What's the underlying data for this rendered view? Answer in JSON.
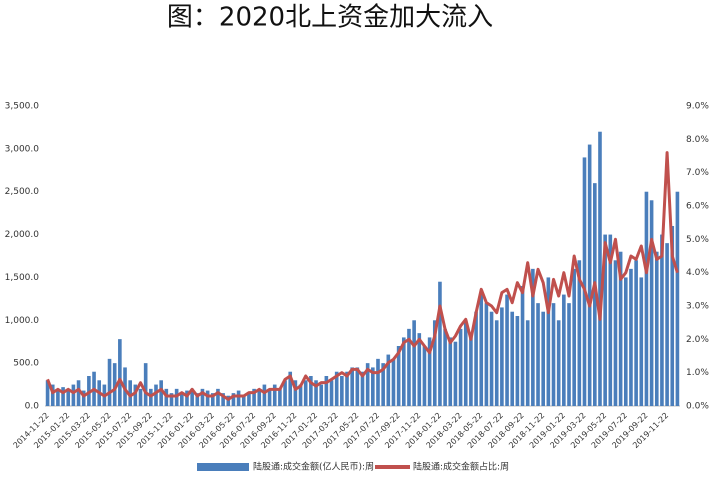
{
  "chart_data": {
    "type": "bar_line",
    "title": "图：2020北上资金加大流入",
    "categories": [
      "2014-11-22",
      null,
      null,
      null,
      "2015-01-22",
      null,
      null,
      null,
      "2015-03-22",
      null,
      null,
      null,
      "2015-05-22",
      null,
      null,
      null,
      "2015-07-22",
      null,
      null,
      null,
      "2015-09-22",
      null,
      null,
      null,
      "2015-11-22",
      null,
      null,
      null,
      "2016-01-22",
      null,
      null,
      null,
      "2016-03-22",
      null,
      null,
      null,
      "2016-05-22",
      null,
      null,
      null,
      "2016-07-22",
      null,
      null,
      null,
      "2016-09-22",
      null,
      null,
      null,
      "2016-11-22",
      null,
      null,
      null,
      "2017-01-22",
      null,
      null,
      null,
      "2017-03-22",
      null,
      null,
      null,
      "2017-05-22",
      null,
      null,
      null,
      "2017-07-22",
      null,
      null,
      null,
      "2017-09-22",
      null,
      null,
      null,
      "2017-11-22",
      null,
      null,
      null,
      "2018-01-22",
      null,
      null,
      null,
      "2018-03-22",
      null,
      null,
      null,
      "2018-05-22",
      null,
      null,
      null,
      "2018-07-22",
      null,
      null,
      null,
      "2018-09-22",
      null,
      null,
      null,
      "2018-11-22",
      null,
      null,
      null,
      "2019-01-22",
      null,
      null,
      null,
      "2019-03-22",
      null,
      null,
      null,
      "2019-05-22",
      null,
      null,
      null,
      "2019-07-22",
      null,
      null,
      null,
      "2019-09-22",
      null,
      null,
      null,
      "2019-11-22",
      null,
      null
    ],
    "series": [
      {
        "name": "陆股通:成交金额(亿人民币):周",
        "color": "#4a7ebb",
        "axis": "y",
        "values": [
          300,
          250,
          200,
          220,
          200,
          250,
          300,
          180,
          350,
          400,
          300,
          250,
          550,
          500,
          780,
          450,
          300,
          250,
          200,
          500,
          200,
          250,
          300,
          200,
          150,
          200,
          150,
          180,
          200,
          150,
          200,
          180,
          150,
          200,
          150,
          120,
          150,
          180,
          120,
          150,
          200,
          180,
          250,
          200,
          250,
          200,
          300,
          400,
          300,
          250,
          300,
          350,
          300,
          250,
          350,
          300,
          400,
          350,
          400,
          450,
          450,
          400,
          500,
          450,
          550,
          500,
          600,
          550,
          700,
          800,
          900,
          1000,
          850,
          700,
          800,
          1000,
          1450,
          900,
          800,
          750,
          900,
          1000,
          800,
          1100,
          1300,
          1200,
          1100,
          1000,
          1150,
          1300,
          1100,
          1050,
          1400,
          1000,
          1600,
          1200,
          1100,
          1500,
          1200,
          1000,
          1300,
          1200,
          1600,
          1700,
          2900,
          3050,
          2600,
          3200,
          2000,
          2000,
          1700,
          1800,
          1500,
          1600,
          1700,
          1500,
          2500,
          2400,
          1800,
          2000,
          1900,
          2100,
          2500
        ]
      },
      {
        "name": "陆股通:成交金额占比:周",
        "color": "#c0504d",
        "axis": "y2",
        "values": [
          0.8,
          0.4,
          0.5,
          0.4,
          0.5,
          0.4,
          0.5,
          0.3,
          0.4,
          0.5,
          0.4,
          0.3,
          0.4,
          0.5,
          0.8,
          0.5,
          0.3,
          0.4,
          0.7,
          0.4,
          0.3,
          0.4,
          0.5,
          0.3,
          0.3,
          0.3,
          0.4,
          0.3,
          0.5,
          0.3,
          0.4,
          0.3,
          0.3,
          0.4,
          0.3,
          0.2,
          0.3,
          0.3,
          0.3,
          0.4,
          0.4,
          0.5,
          0.4,
          0.5,
          0.5,
          0.5,
          0.8,
          0.9,
          0.5,
          0.6,
          0.9,
          0.7,
          0.6,
          0.7,
          0.7,
          0.8,
          0.9,
          1.0,
          0.9,
          1.1,
          1.1,
          0.9,
          1.1,
          1.0,
          1.0,
          1.1,
          1.3,
          1.4,
          1.6,
          1.9,
          2.0,
          1.8,
          2.0,
          1.8,
          1.6,
          2.1,
          3.0,
          2.3,
          1.9,
          2.1,
          2.4,
          2.6,
          2.0,
          2.8,
          3.5,
          3.1,
          3.0,
          2.8,
          3.4,
          3.5,
          3.1,
          3.7,
          3.4,
          4.3,
          3.3,
          4.1,
          3.7,
          2.8,
          3.8,
          3.3,
          4.0,
          3.3,
          4.5,
          3.8,
          3.5,
          3.0,
          3.7,
          2.6,
          4.9,
          4.3,
          5.0,
          3.8,
          4.0,
          4.5,
          4.4,
          4.8,
          4.0,
          5.0,
          4.4,
          4.5,
          7.6,
          4.5,
          4.0
        ]
      }
    ],
    "ylim": [
      0,
      3500
    ],
    "yticks": [
      {
        "value": 0,
        "label": "0.0"
      },
      {
        "value": 500,
        "label": "500.0"
      },
      {
        "value": 1000,
        "label": "1,000.0"
      },
      {
        "value": 1500,
        "label": "1,500.0"
      },
      {
        "value": 2000,
        "label": "2,000.0"
      },
      {
        "value": 2500,
        "label": "2,500.0"
      },
      {
        "value": 3000,
        "label": "3,000.0"
      },
      {
        "value": 3500,
        "label": "3,500.0"
      }
    ],
    "y2lim": [
      0,
      9
    ],
    "y2ticks": [
      {
        "value": 0,
        "label": "0.0%"
      },
      {
        "value": 1,
        "label": "1.0%"
      },
      {
        "value": 2,
        "label": "2.0%"
      },
      {
        "value": 3,
        "label": "3.0%"
      },
      {
        "value": 4,
        "label": "4.0%"
      },
      {
        "value": 5,
        "label": "5.0%"
      },
      {
        "value": 6,
        "label": "6.0%"
      },
      {
        "value": 7,
        "label": "7.0%"
      },
      {
        "value": 8,
        "label": "8.0%"
      },
      {
        "value": 9,
        "label": "9.0%"
      }
    ],
    "legend": "bottom"
  }
}
